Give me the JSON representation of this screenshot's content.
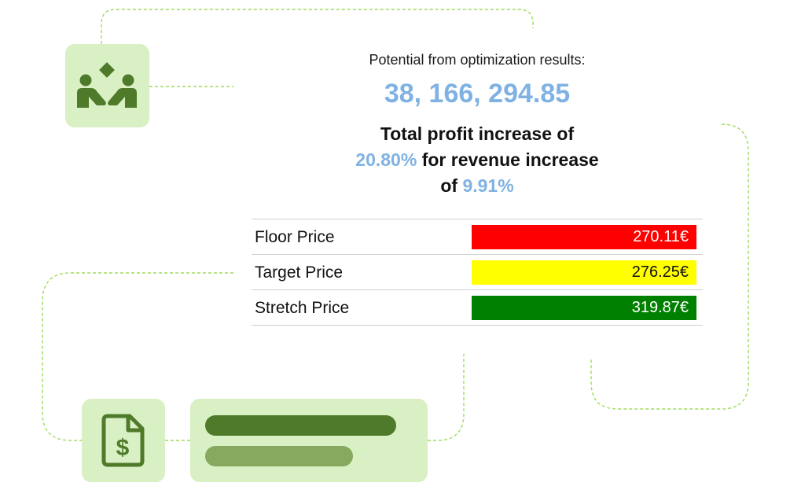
{
  "summary": {
    "subtitle": "Potential from optimization results:",
    "potential_value": "38, 166, 294.85",
    "headline_part1": "Total profit increase of",
    "profit_increase": "20.80%",
    "headline_part2": "for revenue increase",
    "headline_part3": "of",
    "revenue_increase": "9.91%"
  },
  "prices": [
    {
      "label": "Floor Price",
      "value": "270.11€",
      "color": "#ff0000",
      "text_color": "#ffffff"
    },
    {
      "label": "Target Price",
      "value": "276.25€",
      "color": "#ffff00",
      "text_color": "#111111"
    },
    {
      "label": "Stretch Price",
      "value": "319.87€",
      "color": "#008000",
      "text_color": "#ffffff"
    }
  ],
  "icons": {
    "top_tile": "handshake-people-icon",
    "bottom_tile": "dollar-document-icon"
  },
  "colors": {
    "accent_blue": "#7fb2e3",
    "tile_bg": "#d9f0c4",
    "icon_green": "#4f7a2a",
    "bar_dark": "#4f7a2a",
    "bar_light": "#86a85f",
    "connector": "#9edc5a"
  }
}
